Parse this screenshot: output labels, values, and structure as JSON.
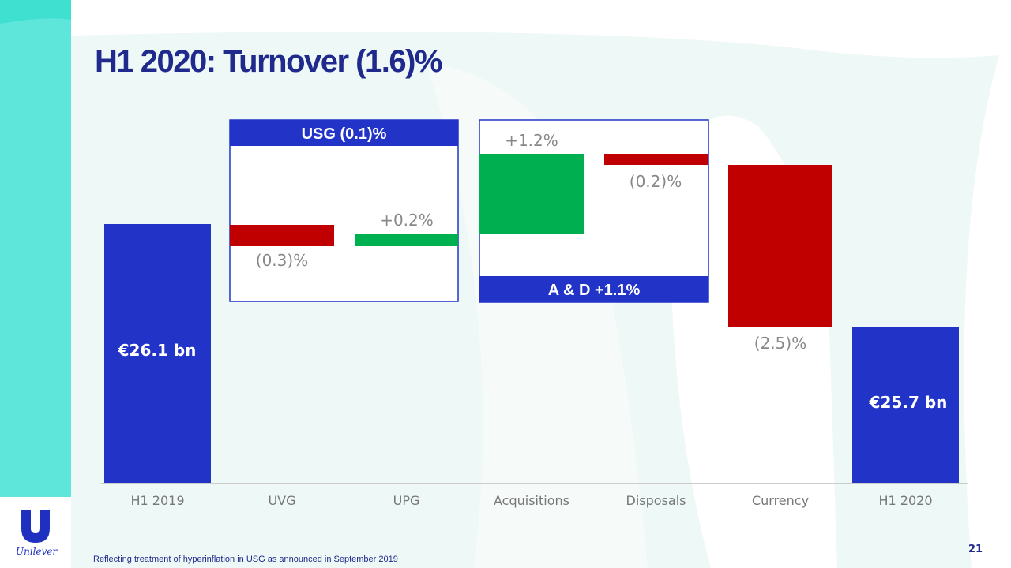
{
  "title": "H1 2020: Turnover (1.6)%",
  "footnote": "Reflecting treatment of hyperinflation in USG as announced in September 2019",
  "page_number": "21",
  "logo": {
    "text": "Unilever"
  },
  "colors": {
    "total": "#2233c8",
    "increase": "#00b050",
    "decrease": "#c00000",
    "title": "#1f2a8c",
    "label": "#888888",
    "accent_strip": "#3fe0d0",
    "background": "#eef8f6"
  },
  "chart_data": {
    "type": "waterfall",
    "categories": [
      "H1 2019",
      "UVG",
      "UPG",
      "Acquisitions",
      "Disposals",
      "Currency",
      "H1 2020"
    ],
    "values": [
      26.1,
      -0.3,
      0.2,
      1.2,
      -0.2,
      -2.5,
      25.7
    ],
    "kinds": [
      "total",
      "decrease",
      "increase",
      "increase",
      "decrease",
      "decrease",
      "total"
    ],
    "data_labels": [
      "€26.1 bn",
      "(0.3)%",
      "+0.2%",
      "+1.2%",
      "(0.2)%",
      "(2.5)%",
      "€25.7 bn"
    ],
    "groups": [
      {
        "label": "USG (0.1)%",
        "categories": [
          "UVG",
          "UPG"
        ]
      },
      {
        "label": "A & D +1.1%",
        "categories": [
          "Acquisitions",
          "Disposals"
        ]
      }
    ],
    "axis_scale": "not to scale",
    "grid": false,
    "legend": "none"
  }
}
